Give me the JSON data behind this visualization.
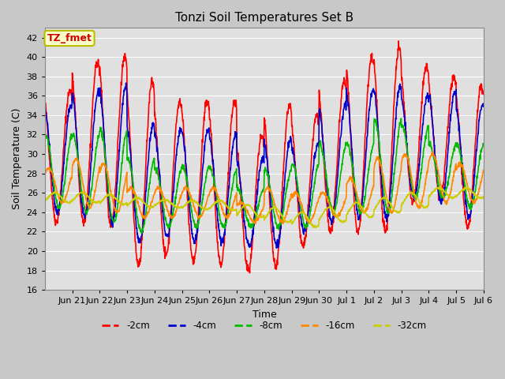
{
  "title": "Tonzi Soil Temperatures Set B",
  "xlabel": "Time",
  "ylabel": "Soil Temperature (C)",
  "ylim": [
    16,
    43
  ],
  "yticks": [
    16,
    18,
    20,
    22,
    24,
    26,
    28,
    30,
    32,
    34,
    36,
    38,
    40,
    42
  ],
  "annotation_text": "TZ_fmet",
  "annotation_bg": "#ffffcc",
  "annotation_border": "#bbbb00",
  "annotation_color": "#cc0000",
  "fig_bg": "#c8c8c8",
  "plot_bg": "#e0e0e0",
  "grid_color": "#ffffff",
  "colors": {
    "-2cm": "#ff0000",
    "-4cm": "#0000cc",
    "-8cm": "#00bb00",
    "-16cm": "#ff8800",
    "-32cm": "#cccc00"
  },
  "lw": 1.2,
  "xtick_labels": [
    "Jun 21",
    "Jun 22",
    "Jun 23",
    "Jun 24",
    "Jun 25",
    "Jun 26",
    "Jun 27",
    "Jun 28",
    "Jun 29",
    "Jun 30",
    "Jul 1",
    "Jul 2",
    "Jul 3",
    "Jul 4",
    "Jul 5",
    "Jul 6"
  ],
  "n_days": 16,
  "ppd": 96
}
